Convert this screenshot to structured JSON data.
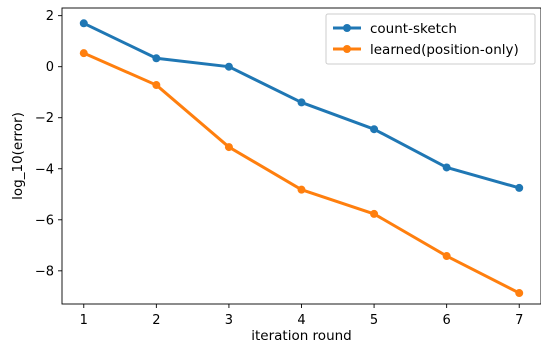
{
  "chart_data": {
    "type": "line",
    "title": "",
    "xlabel": "iteration round",
    "ylabel": "log_10(error)",
    "xlim": [
      0.7,
      7.3
    ],
    "ylim": [
      -9.3,
      2.3
    ],
    "xticks": [
      1,
      2,
      3,
      4,
      5,
      6,
      7
    ],
    "xtick_labels": [
      "1",
      "2",
      "3",
      "4",
      "5",
      "6",
      "7"
    ],
    "yticks": [
      2,
      0,
      -2,
      -4,
      -6,
      -8
    ],
    "ytick_labels": [
      "2",
      "0",
      "−2",
      "−4",
      "−6",
      "−8"
    ],
    "grid": false,
    "legend_position": "top-right",
    "x": [
      1,
      2,
      3,
      4,
      5,
      6,
      7
    ],
    "series": [
      {
        "name": "count-sketch",
        "color": "#1f77b4",
        "values": [
          1.7,
          0.33,
          0.0,
          -1.4,
          -2.45,
          -3.95,
          -4.75
        ]
      },
      {
        "name": "learned(position-only)",
        "color": "#ff7f0e",
        "values": [
          0.53,
          -0.72,
          -3.15,
          -4.82,
          -5.77,
          -7.42,
          -8.87
        ]
      }
    ]
  }
}
